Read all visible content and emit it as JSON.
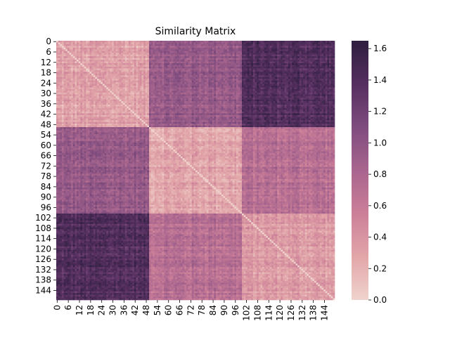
{
  "chart_data": {
    "type": "heatmap",
    "title": "Similarity Matrix",
    "xlabel": "",
    "ylabel": "",
    "n": 150,
    "cluster_boundaries": [
      50,
      100
    ],
    "block_means": [
      [
        0.3,
        0.95,
        1.4
      ],
      [
        0.95,
        0.3,
        0.72
      ],
      [
        1.4,
        0.72,
        0.35
      ]
    ],
    "diagonal_value": 0.0,
    "x_ticks": [
      0,
      6,
      12,
      18,
      24,
      30,
      36,
      42,
      48,
      54,
      60,
      66,
      72,
      78,
      84,
      90,
      96,
      102,
      108,
      114,
      120,
      126,
      132,
      138,
      144
    ],
    "y_ticks": [
      0,
      6,
      12,
      18,
      24,
      30,
      36,
      42,
      48,
      54,
      60,
      66,
      72,
      78,
      84,
      90,
      96,
      102,
      108,
      114,
      120,
      126,
      132,
      138,
      144
    ],
    "colorbar": {
      "min": 0.0,
      "max": 1.65,
      "ticks": [
        "0.0",
        "0.2",
        "0.4",
        "0.6",
        "0.8",
        "1.0",
        "1.2",
        "1.4",
        "1.6"
      ],
      "colors": [
        "#f0d3cd",
        "#e2a6a9",
        "#cc7f98",
        "#a8658e",
        "#7f4c7e",
        "#552f5f",
        "#2d1e3e"
      ]
    },
    "grid": false,
    "legend": "colorbar-right"
  }
}
